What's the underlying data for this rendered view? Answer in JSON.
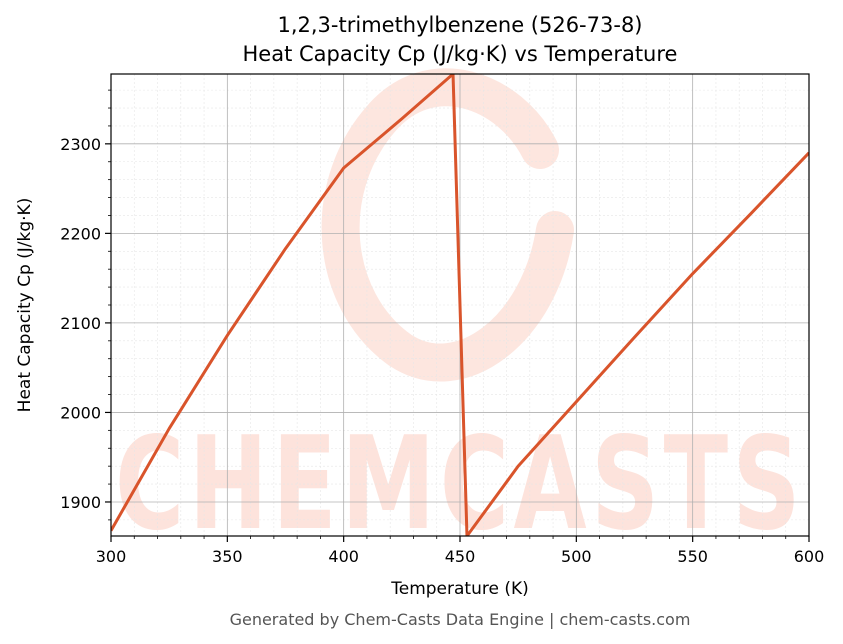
{
  "chart_data": {
    "type": "line",
    "title_line1": "1,2,3-trimethylbenzene (526-73-8)",
    "title_line2": "Heat Capacity Cp (J/kg·K) vs Temperature",
    "xlabel": "Temperature (K)",
    "ylabel": "Heat Capacity Cp (J/kg·K)",
    "xlim": [
      300,
      600
    ],
    "ylim": [
      1862,
      2378
    ],
    "xticks": [
      300,
      350,
      400,
      450,
      500,
      550,
      600
    ],
    "yticks": [
      1900,
      2000,
      2100,
      2200,
      2300
    ],
    "grid": true,
    "series": [
      {
        "color": "#d9542b",
        "x": [
          300,
          325,
          350,
          375,
          400,
          425,
          447,
          453,
          475,
          500,
          525,
          550,
          575,
          600
        ],
        "y": [
          1868,
          1982,
          2086,
          2183,
          2273,
          2328,
          2378,
          1862,
          1940,
          2012,
          2084,
          2155,
          2222,
          2290
        ]
      }
    ]
  },
  "watermark": {
    "text": "CHEMCASTS",
    "color": "#fde3dc"
  },
  "footer": "Generated by Chem-Casts Data Engine | chem-casts.com"
}
